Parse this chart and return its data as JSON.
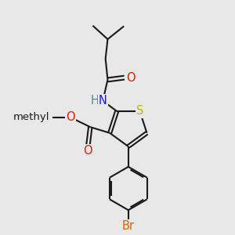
{
  "bg_color": "#e8e8e8",
  "bond_color": "#1a1a1a",
  "line_width": 1.5,
  "atoms": {
    "S": {
      "color": "#b8b800",
      "fontsize": 10.5
    },
    "N": {
      "color": "#1a1acc",
      "fontsize": 10.5
    },
    "O": {
      "color": "#cc2200",
      "fontsize": 10.5
    },
    "Br": {
      "color": "#cc6600",
      "fontsize": 10.5
    },
    "H": {
      "color": "#558888",
      "fontsize": 10.5
    },
    "methyl": {
      "color": "#1a1a1a",
      "fontsize": 10.5
    }
  },
  "figsize": [
    3.0,
    3.0
  ],
  "dpi": 100
}
